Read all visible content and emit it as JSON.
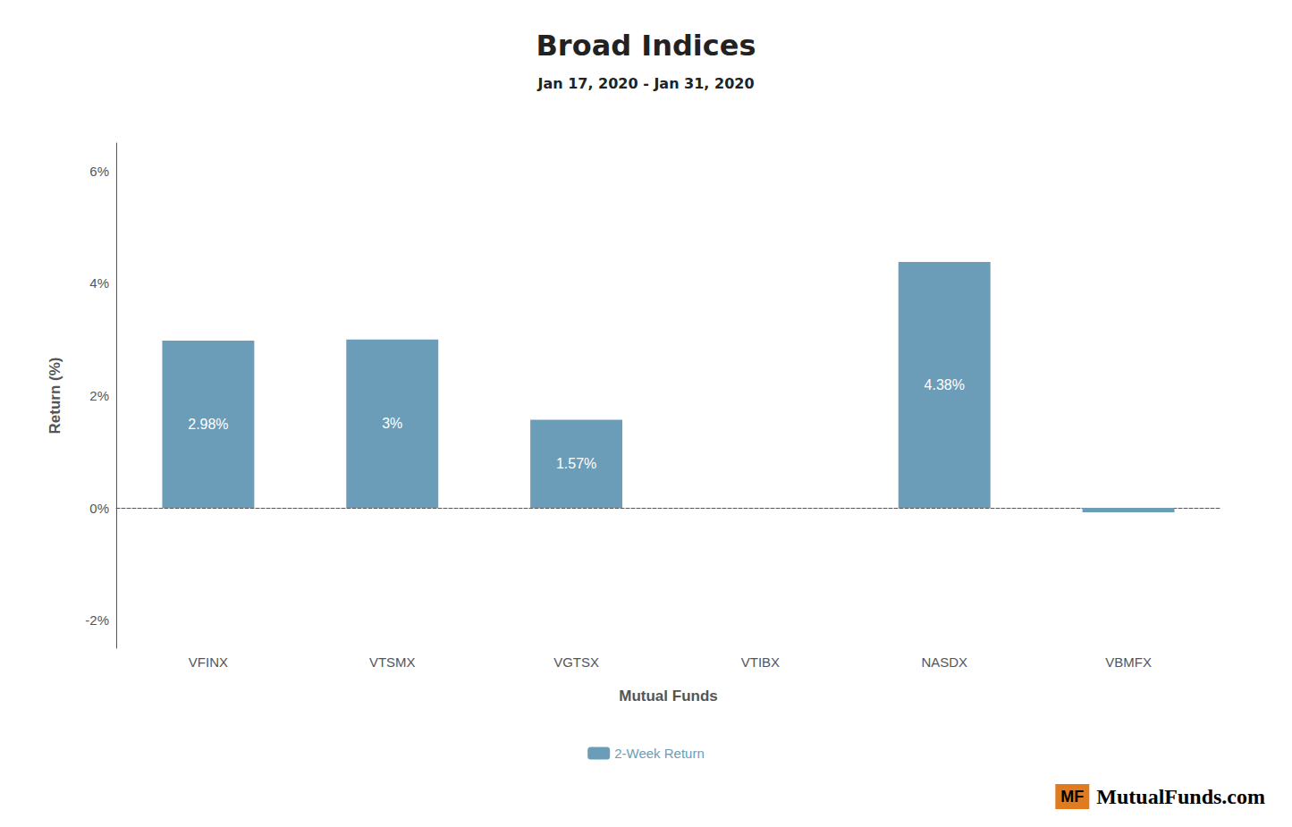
{
  "chart_data": {
    "type": "bar",
    "title": "Broad Indices",
    "subtitle": "Jan 17, 2020 - Jan 31, 2020",
    "categories": [
      "VFINX",
      "VTSMX",
      "VGTSX",
      "VTIBX",
      "NASDX",
      "VBMFX"
    ],
    "series": [
      {
        "name": "2-Week Return",
        "color": "#6b9db8",
        "values": [
          2.98,
          3.0,
          1.57,
          0.0,
          4.38,
          -0.08
        ],
        "value_labels": [
          "2.98%",
          "3%",
          "1.57%",
          null,
          "4.38%",
          null
        ]
      }
    ],
    "data_labels": true,
    "xlabel": "Mutual Funds",
    "ylabel": "Return (%)",
    "ylim": [
      -2.5,
      6.5
    ],
    "yticks": [
      {
        "value": -2,
        "label": "-2%"
      },
      {
        "value": 0,
        "label": "0%"
      },
      {
        "value": 2,
        "label": "2%"
      },
      {
        "value": 4,
        "label": "4%"
      },
      {
        "value": 6,
        "label": "6%"
      }
    ],
    "grid": false,
    "legend": "bottom",
    "annotations": [
      {
        "text": "MF",
        "color": "#e07b20"
      },
      {
        "text": "MutualFunds",
        "color": "#222222"
      },
      {
        "text": ".com",
        "color": "#e07b20"
      }
    ]
  }
}
